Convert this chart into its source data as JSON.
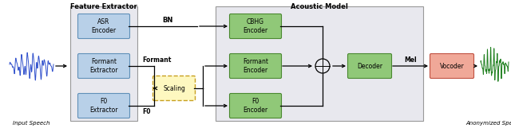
{
  "title_feature": "Feature Extractor",
  "title_acoustic": "Acoustic Model",
  "bg_feature_color": "#e8e8ee",
  "bg_feature_edge": "#999999",
  "bg_acoustic_color": "#e8e8ee",
  "bg_acoustic_edge": "#999999",
  "blue_box_color": "#b8d0e8",
  "blue_box_edge": "#6090b8",
  "green_box_color": "#90c878",
  "green_box_edge": "#4a8830",
  "yellow_box_color": "#fef8c0",
  "yellow_box_edge": "#c8a020",
  "red_box_color": "#f0a898",
  "red_box_edge": "#c05040",
  "input_label": "Input Speech",
  "output_label": "Anonymized Speech",
  "bn_label": "BN",
  "formant_label": "Formant",
  "f0_label": "F0",
  "mel_label": "Mel"
}
